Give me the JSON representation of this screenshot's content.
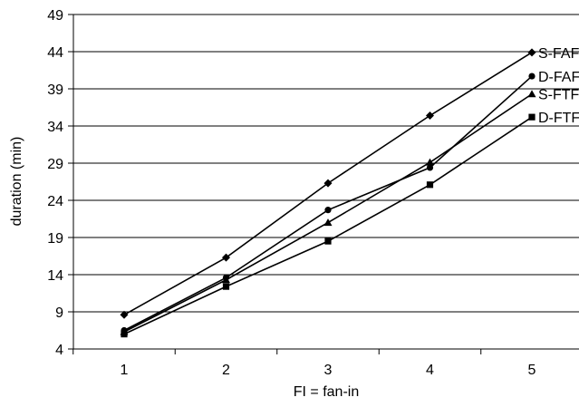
{
  "chart_data": {
    "type": "line",
    "title": "",
    "xlabel": "FI = fan-in",
    "ylabel": "duration (min)",
    "x": [
      1,
      2,
      3,
      4,
      5
    ],
    "x_tick_labels": [
      "1",
      "2",
      "3",
      "4",
      "5"
    ],
    "ylim": [
      4,
      49
    ],
    "y_ticks": [
      4,
      9,
      14,
      19,
      24,
      29,
      34,
      39,
      44,
      49
    ],
    "y_tick_labels": [
      "4",
      "9",
      "14",
      "19",
      "24",
      "29",
      "34",
      "39",
      "44",
      "49"
    ],
    "grid": "horizontal",
    "legend": "end-of-line labels",
    "series": [
      {
        "name": "S-FAF",
        "marker": "diamond",
        "values": [
          8.6,
          16.3,
          26.3,
          35.4,
          43.9
        ]
      },
      {
        "name": "D-FAF",
        "marker": "circle",
        "values": [
          6.5,
          13.6,
          22.7,
          28.4,
          40.7
        ]
      },
      {
        "name": "S-FTF",
        "marker": "triangle",
        "values": [
          6.3,
          13.3,
          21.0,
          29.1,
          38.3
        ]
      },
      {
        "name": "D-FTF",
        "marker": "square",
        "values": [
          6.0,
          12.4,
          18.5,
          26.1,
          35.2
        ]
      }
    ],
    "line_color": "#000000",
    "grid_color": "#000000"
  }
}
